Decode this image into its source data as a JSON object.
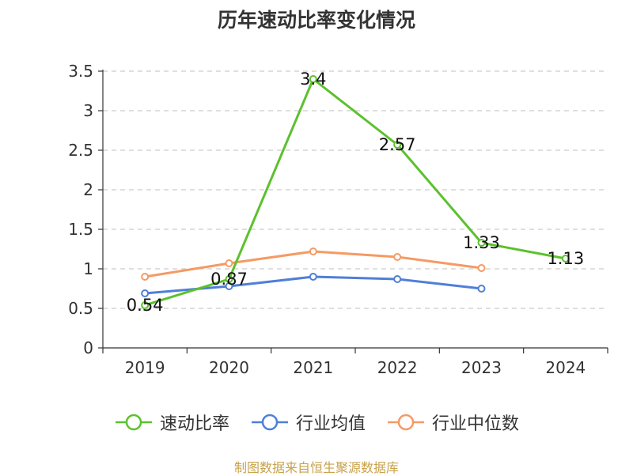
{
  "title": "历年速动比率变化情况",
  "source": "制图数据来自恒生聚源数据库",
  "colors": {
    "speed_ratio": "#5cc12e",
    "industry_mean": "#4f7fd8",
    "industry_median": "#f59a64",
    "grid": "#cccccc",
    "axis": "#333333"
  },
  "chart_data": {
    "type": "line",
    "title": "历年速动比率变化情况",
    "xlabel": "",
    "ylabel": "",
    "x": [
      "2019",
      "2020",
      "2021",
      "2022",
      "2023",
      "2024"
    ],
    "ylim": [
      0,
      3.5
    ],
    "yticks": [
      "0",
      "0.5",
      "1",
      "1.5",
      "2",
      "2.5",
      "3",
      "3.5"
    ],
    "grid": true,
    "legend_position": "bottom",
    "series": [
      {
        "name": "速动比率",
        "values": [
          0.54,
          0.87,
          3.4,
          2.57,
          1.33,
          1.13
        ],
        "labels": [
          "0.54",
          "0.87",
          "3.4",
          "2.57",
          "1.33",
          "1.13"
        ],
        "color_key": "speed_ratio",
        "show_labels": true
      },
      {
        "name": "行业均值",
        "values": [
          0.69,
          0.78,
          0.9,
          0.87,
          0.75,
          null
        ],
        "color_key": "industry_mean",
        "show_labels": false
      },
      {
        "name": "行业中位数",
        "values": [
          0.9,
          1.07,
          1.22,
          1.15,
          1.01,
          null
        ],
        "color_key": "industry_median",
        "show_labels": false
      }
    ]
  }
}
